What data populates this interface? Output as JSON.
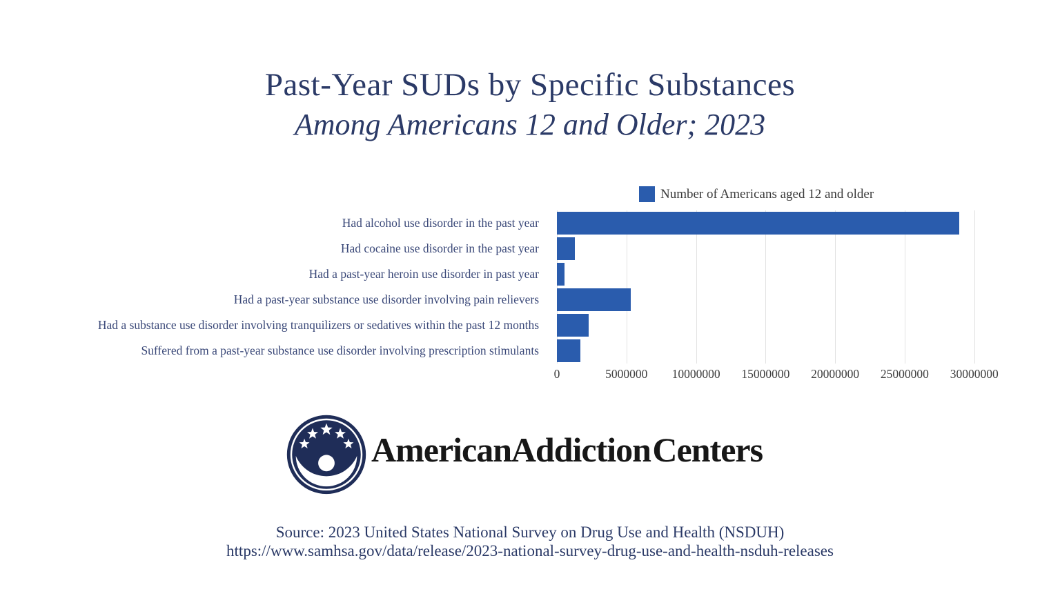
{
  "title": "Past-Year SUDs by Specific Substances",
  "subtitle": "Among Americans 12 and Older; 2023",
  "legend": {
    "label": "Number of Americans aged 12 and older",
    "swatch_color": "#2a5cad"
  },
  "chart_data": {
    "type": "bar",
    "orientation": "horizontal",
    "title": "Past-Year SUDs by Specific Substances",
    "subtitle": "Among Americans 12 and Older; 2023",
    "series_name": "Number of Americans aged 12 and older",
    "categories": [
      "Had alcohol use disorder in the past year",
      "Had cocaine use disorder in the past year",
      "Had a past-year heroin use disorder in past year",
      "Had a past-year substance use disorder involving pain relievers",
      "Had a substance use disorder involving tranquilizers or sedatives within the past 12 months",
      "Suffered from a past-year substance use disorder involving prescription stimulants"
    ],
    "values": [
      28900000,
      1300000,
      550000,
      5300000,
      2300000,
      1700000
    ],
    "xlabel": "",
    "ylabel": "",
    "xlim": [
      0,
      32000000
    ],
    "xticks": [
      0,
      5000000,
      10000000,
      15000000,
      20000000,
      25000000,
      30000000
    ],
    "xtick_labels": [
      "0",
      "5000000",
      "10000000",
      "15000000",
      "20000000",
      "25000000",
      "30000000"
    ],
    "grid": true,
    "legend_position": "top-right",
    "bar_color": "#2a5cad",
    "gridline_color": "#e2e2e2"
  },
  "logo": {
    "wordmark": "American Addiction Centers",
    "emblem": "circle-stars-person-icon",
    "emblem_color": "#1f2d58"
  },
  "footer": {
    "source_line": "Source: 2023 United States National Survey on Drug Use and Health (NSDUH)",
    "url_line": "https://www.samhsa.gov/data/release/2023-national-survey-drug-use-and-health-nsduh-releases"
  },
  "colors": {
    "background": "#ffffff",
    "title_text": "#2b3a67",
    "category_text": "#3a4878",
    "tick_text": "#3f3f3f",
    "legend_text": "#3a3a3a",
    "wordmark_text": "#171717"
  }
}
